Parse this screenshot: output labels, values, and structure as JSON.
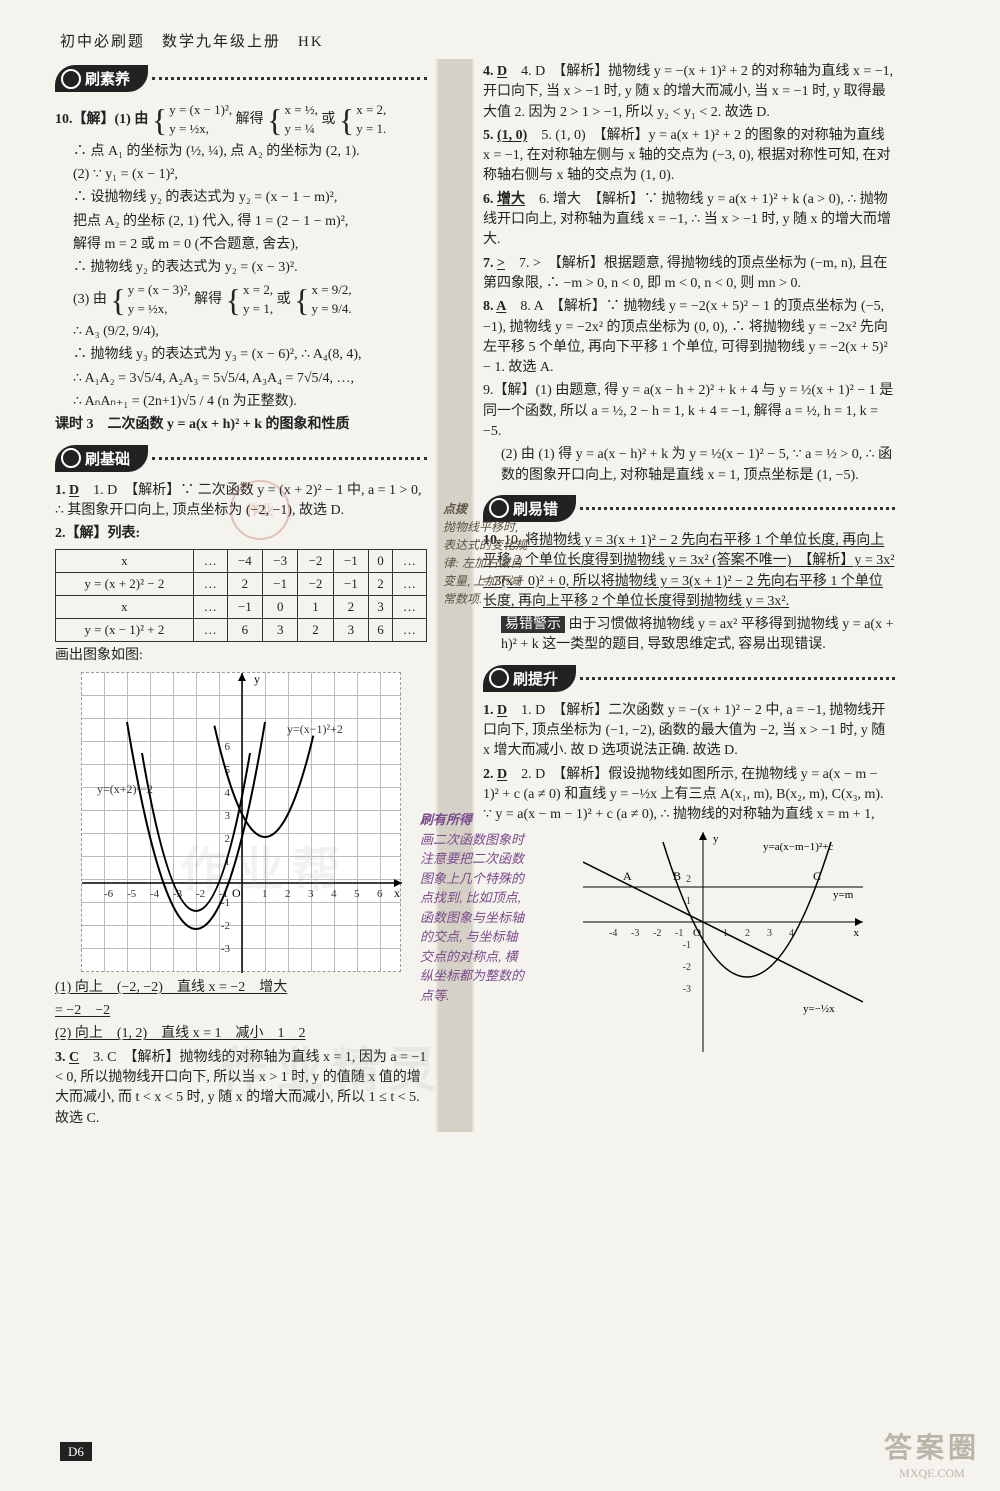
{
  "header": "初中必刷题　数学九年级上册　HK",
  "page_number": "D6",
  "sections": {
    "suayang": "刷素养",
    "jichu": "刷基础",
    "yicuo": "刷易错",
    "tisheng": "刷提升"
  },
  "stamp_text": "作业",
  "watermark_main": "作业精灵",
  "watermark_sub": "作业帮",
  "bottom_logo": {
    "big": "答案圈",
    "url": "MXQE.COM"
  },
  "left": {
    "p10a": "10.【解】(1) 由",
    "p10a_sys1": [
      "y = (x − 1)²,",
      "y = ½x,"
    ],
    "p10a_mid": "解得",
    "p10a_sys2": [
      "x = ½,",
      "y = ¼"
    ],
    "p10a_or": "或",
    "p10a_sys3": [
      "x = 2,",
      "y = 1."
    ],
    "p10b": "∴ 点 A₁ 的坐标为 (½, ¼), 点 A₂ 的坐标为 (2, 1).",
    "p10c": "(2) ∵ y₁ = (x − 1)²,",
    "p10d": "∴ 设抛物线 y₂ 的表达式为 y₂ = (x − 1 − m)²,",
    "p10e": "把点 A₂ 的坐标 (2, 1) 代入, 得 1 = (2 − 1 − m)²,",
    "p10f": "解得 m = 2 或 m = 0 (不合题意, 舍去),",
    "p10g": "∴ 抛物线 y₂ 的表达式为 y₂ = (x − 3)².",
    "p10h": "(3) 由",
    "p10h_sys1": [
      "y = (x − 3)²,",
      "y = ½x,"
    ],
    "p10h_mid": "解得",
    "p10h_sys2": [
      "x = 2,",
      "y = 1,"
    ],
    "p10h_or": "或",
    "p10h_sys3": [
      "x = 9/2,",
      "y = 9/4."
    ],
    "p10i": "∴ A₃ (9/2, 9/4),",
    "p10j": "∴ 抛物线 y₃ 的表达式为 y₃ = (x − 6)², ∴ A₄(8, 4),",
    "p10k": "∴ A₁A₂ = 3√5/4, A₂A₃ = 5√5/4, A₃A₄ = 7√5/4, …,",
    "p10l": "∴ AₙAₙ₊₁ = (2n+1)√5 / 4 (n 为正整数).",
    "lesson3_title": "课时 3　二次函数 y = a(x + h)² + k 的图象和性质",
    "q1": "1. D　【解析】∵ 二次函数 y = (x + 2)² − 1 中, a = 1 > 0, ∴ 其图象开口向上, 顶点坐标为 (−2, −1), 故选 D.",
    "q2_head": "2.【解】列表:",
    "table1_rows": [
      [
        "x",
        "…",
        "−4",
        "−3",
        "−2",
        "−1",
        "0",
        "…"
      ],
      [
        "y = (x + 2)² − 2",
        "…",
        "2",
        "−1",
        "−2",
        "−1",
        "2",
        "…"
      ],
      [
        "x",
        "…",
        "−1",
        "0",
        "1",
        "2",
        "3",
        "…"
      ],
      [
        "y = (x − 1)² + 2",
        "…",
        "6",
        "3",
        "2",
        "3",
        "6",
        "…"
      ]
    ],
    "q2_draw": "画出图象如图:",
    "graph_labels": {
      "f1": "y=(x+2)²−2",
      "f2": "y=(x−1)²+2"
    },
    "q2_ans1": "(1) 向上　(−2, −2)　直线 x = −2　增大",
    "q2_ans1b": "= −2　−2",
    "q2_ans2": "(2) 向上　(1, 2)　直线 x = 1　减小　1　2",
    "q3": "3. C　【解析】抛物线的对称轴为直线 x = 1, 因为 a = −1 < 0, 所以抛物线开口向下, 所以当 x > 1 时, y 的值随 x 值的增大而减小, 而 t < x < 5 时, y 随 x 的增大而减小, 所以 1 ≤ t < 5. 故选 C."
  },
  "middle_notes": {
    "n1_title": "点拨",
    "n1": "抛物线平移时, 表达式的变化规律: 左加右减自变量, 上加下减常数项.",
    "n2_title": "刷有所得",
    "n2": "画二次函数图象时注意要把二次函数图象上几个特殊的点找到, 比如顶点, 函数图象与坐标轴的交点, 与坐标轴交点的对称点, 横纵坐标都为整数的点等."
  },
  "right": {
    "q4": "4. D　【解析】抛物线 y = −(x + 1)² + 2 的对称轴为直线 x = −1, 开口向下, 当 x > −1 时, y 随 x 的增大而减小, 当 x = −1 时, y 取得最大值 2. 因为 2 > 1 > −1, 所以 y₂ < y₁ < 2. 故选 D.",
    "q5": "5. (1, 0)　【解析】y = a(x + 1)² + 2 的图象的对称轴为直线 x = −1, 在对称轴左侧与 x 轴的交点为 (−3, 0), 根据对称性可知, 在对称轴右侧与 x 轴的交点为 (1, 0).",
    "q6": "6. 增大　【解析】∵ 抛物线 y = a(x + 1)² + k (a > 0), ∴ 抛物线开口向上, 对称轴为直线 x = −1, ∴ 当 x > −1 时, y 随 x 的增大而增大.",
    "q7": "7. >　【解析】根据题意, 得抛物线的顶点坐标为 (−m, n), 且在第四象限, ∴ −m > 0, n < 0, 即 m < 0, n < 0, 则 mn > 0.",
    "q8": "8. A　【解析】∵ 抛物线 y = −2(x + 5)² − 1 的顶点坐标为 (−5, −1), 抛物线 y = −2x² 的顶点坐标为 (0, 0), ∴ 将抛物线 y = −2x² 先向左平移 5 个单位, 再向下平移 1 个单位, 可得到抛物线 y = −2(x + 5)² − 1. 故选 A.",
    "q9a": "9.【解】(1) 由题意, 得 y = a(x − h + 2)² + k + 4 与 y = ½(x + 1)² − 1 是同一个函数, 所以 a = ½, 2 − h = 1, k + 4 = −1, 解得 a = ½, h = 1, k = −5.",
    "q9b": "(2) 由 (1) 得 y = a(x − h)² + k 为 y = ½(x − 1)² − 5, ∵ a = ½ > 0, ∴ 函数的图象开口向上, 对称轴是直线 x = 1, 顶点坐标是 (1, −5).",
    "q10": "10. 将抛物线 y = 3(x + 1)² − 2 先向右平移 1 个单位长度, 再向上平移 2 个单位长度得到抛物线 y = 3x² (答案不唯一)　【解析】y = 3x² = 3(x + 0)² + 0, 所以将抛物线 y = 3(x + 1)² − 2 先向右平移 1 个单位长度, 再向上平移 2 个单位长度得到抛物线 y = 3x².",
    "q10_warn_tag": "易错警示",
    "q10_warn": "由于习惯做将抛物线 y = ax² 平移得到抛物线 y = a(x + h)² + k 这一类型的题目, 导致思维定式, 容易出现错误.",
    "ts_q1": "1. D　【解析】二次函数 y = −(x + 1)² − 2 中, a = −1, 抛物线开口向下, 顶点坐标为 (−1, −2), 函数的最大值为 −2, 当 x > −1 时, y 随 x 增大而减小. 故 D 选项说法正确. 故选 D.",
    "ts_q2": "2. D　【解析】假设抛物线如图所示, 在抛物线 y = a(x − m − 1)² + c (a ≠ 0) 和直线 y = −½x 上有三点 A(x₁, m), B(x₂, m), C(x₃, m). ∵ y = a(x − m − 1)² + c (a ≠ 0), ∴ 抛物线的对称轴为直线 x = m + 1,",
    "graph2_labels": {
      "parabola": "y=a(x−m−1)²+c",
      "line": "y=−½x",
      "hline": "y=m"
    }
  }
}
